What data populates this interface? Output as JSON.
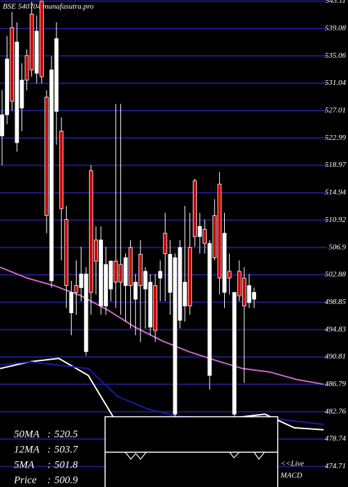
{
  "chart_data": {
    "type": "candlestick",
    "title": "BSE 540704 munafasutra.pro",
    "ylim": [
      471.7,
      543.27
    ],
    "yticks": [
      543.11,
      539.08,
      535.06,
      531.04,
      527.01,
      522.99,
      518.97,
      514.94,
      510.92,
      506.9,
      502.88,
      498.85,
      494.83,
      490.81,
      486.79,
      482.76,
      478.74,
      474.71
    ],
    "grid": true,
    "candles": [
      {
        "o": 523.3,
        "h": 530,
        "l": 519,
        "c": 526.4
      },
      {
        "o": 526.4,
        "h": 538,
        "l": 525,
        "c": 534.6
      },
      {
        "o": 539.2,
        "h": 541.5,
        "l": 527,
        "c": 528.4
      },
      {
        "o": 522.3,
        "h": 540,
        "l": 521,
        "c": 537.1
      },
      {
        "o": 527.4,
        "h": 534,
        "l": 524,
        "c": 531.5
      },
      {
        "o": 535.1,
        "h": 536,
        "l": 530,
        "c": 531.5
      },
      {
        "o": 541.2,
        "h": 543,
        "l": 532,
        "c": 533
      },
      {
        "o": 532.5,
        "h": 541,
        "l": 531,
        "c": 538.7
      },
      {
        "o": 543.1,
        "h": 543.2,
        "l": 531,
        "c": 532
      },
      {
        "o": 529,
        "h": 530,
        "l": 509,
        "c": 511.6
      },
      {
        "o": 502,
        "h": 535,
        "l": 501,
        "c": 533
      },
      {
        "o": 526.9,
        "h": 540,
        "l": 522,
        "c": 537.6
      },
      {
        "o": 524,
        "h": 526,
        "l": 505,
        "c": 512.6
      },
      {
        "o": 511,
        "h": 513,
        "l": 498,
        "c": 501.3
      },
      {
        "o": 497.3,
        "h": 502,
        "l": 494,
        "c": 500.3
      },
      {
        "o": 501.3,
        "h": 505,
        "l": 497,
        "c": 500.3
      },
      {
        "o": 501,
        "h": 507,
        "l": 499,
        "c": 503
      },
      {
        "o": 491.6,
        "h": 504,
        "l": 491,
        "c": 503
      },
      {
        "o": 518.2,
        "h": 519,
        "l": 497,
        "c": 500.3
      },
      {
        "o": 508,
        "h": 510,
        "l": 500,
        "c": 504.9
      },
      {
        "o": 498.3,
        "h": 510,
        "l": 497,
        "c": 508
      },
      {
        "o": 498.3,
        "h": 507,
        "l": 497,
        "c": 504.4
      },
      {
        "o": 500.8,
        "h": 505,
        "l": 499,
        "c": 504.9
      },
      {
        "o": 504.9,
        "h": 528,
        "l": 498,
        "c": 501.8
      },
      {
        "o": 504.4,
        "h": 528,
        "l": 497,
        "c": 501.8
      },
      {
        "o": 501.3,
        "h": 506,
        "l": 496,
        "c": 505.4
      },
      {
        "o": 506.9,
        "h": 508,
        "l": 495,
        "c": 501.3
      },
      {
        "o": 499.3,
        "h": 503,
        "l": 494,
        "c": 501.8
      },
      {
        "o": 505.9,
        "h": 508,
        "l": 493,
        "c": 501.3
      },
      {
        "o": 500.8,
        "h": 504,
        "l": 495,
        "c": 503.4
      },
      {
        "o": 495.2,
        "h": 503,
        "l": 494,
        "c": 501.8
      },
      {
        "o": 501.3,
        "h": 503,
        "l": 493,
        "c": 494.7
      },
      {
        "o": 502.4,
        "h": 505,
        "l": 499,
        "c": 503.4
      },
      {
        "o": 509,
        "h": 512,
        "l": 499,
        "c": 506
      },
      {
        "o": 500.3,
        "h": 508,
        "l": 497,
        "c": 505.9
      },
      {
        "o": 482.4,
        "h": 506,
        "l": 481,
        "c": 505.4
      },
      {
        "o": 496.2,
        "h": 508,
        "l": 495,
        "c": 506.9
      },
      {
        "o": 498.3,
        "h": 513,
        "l": 496,
        "c": 501.8
      },
      {
        "o": 506.9,
        "h": 512,
        "l": 497,
        "c": 498.3
      },
      {
        "o": 516.7,
        "h": 517,
        "l": 507,
        "c": 508.5
      },
      {
        "o": 508.5,
        "h": 512,
        "l": 506,
        "c": 510
      },
      {
        "o": 509.6,
        "h": 511,
        "l": 506,
        "c": 507.5
      },
      {
        "o": 488.1,
        "h": 508,
        "l": 486,
        "c": 507.5
      },
      {
        "o": 511.6,
        "h": 514,
        "l": 505,
        "c": 505.4
      },
      {
        "o": 516.2,
        "h": 518,
        "l": 500,
        "c": 502.4
      },
      {
        "o": 500.3,
        "h": 512,
        "l": 498,
        "c": 509
      },
      {
        "o": 503.4,
        "h": 506,
        "l": 500,
        "c": 502.4
      },
      {
        "o": 482.4,
        "h": 500,
        "l": 481,
        "c": 500.3
      },
      {
        "o": 503.4,
        "h": 505,
        "l": 499,
        "c": 499.8
      },
      {
        "o": 502.4,
        "h": 504,
        "l": 487,
        "c": 498.3
      },
      {
        "o": 498.8,
        "h": 503,
        "l": 498,
        "c": 501.3
      },
      {
        "o": 499.3,
        "h": 501,
        "l": 498,
        "c": 500.3
      }
    ],
    "up_color": "#ffffff",
    "down_color": "#cc0000",
    "lines": [
      {
        "color": "#cc66cc",
        "values": [
          504,
          502.4,
          501.3,
          499.8,
          497.7,
          495.2,
          493.2,
          491.6,
          490.3,
          489.1,
          488.6,
          487.5,
          486.8
        ]
      },
      {
        "color": "#ffffff",
        "values": [
          489.1,
          490.1,
          490.6,
          488.1,
          480.9,
          479.9,
          479.9,
          479.9,
          481.9,
          482.4,
          480.4,
          480.1
        ]
      },
      {
        "color": "#1a1aaa",
        "values": [
          489.6,
          490.1,
          489.6,
          489.1,
          485.0,
          483.2,
          482.1,
          481.9,
          481.9,
          481.9,
          481.4,
          480.9
        ]
      }
    ],
    "legend": [
      {
        "name": "50MA",
        "value": 520.5
      },
      {
        "name": "12MA",
        "value": 503.7
      },
      {
        "name": "5MA",
        "value": 501.8
      },
      {
        "name": "Price",
        "value": 500.9
      }
    ],
    "separator": ":",
    "annotation": [
      "<<Live",
      "MACD"
    ]
  }
}
